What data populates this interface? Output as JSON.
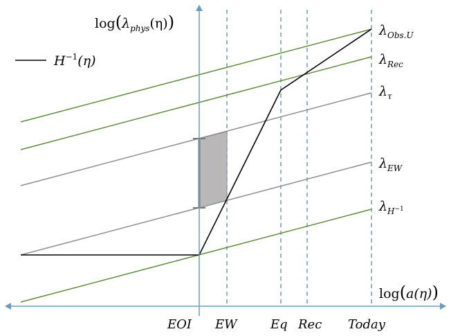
{
  "axes": {
    "y_label_prefix": "log",
    "y_label_arg": "λ",
    "y_label_sub": "phys",
    "y_label_tail": "(η)",
    "x_label_prefix": "log",
    "x_label_arg": "a(η)"
  },
  "legend": {
    "label_main": "H",
    "label_sup": "−1",
    "label_tail": "(η)"
  },
  "ticks": {
    "eoi": "EOI",
    "ew": "EW",
    "eq": "Eq",
    "rec": "Rec",
    "today": "Today"
  },
  "line_labels": {
    "obs": {
      "base": "λ",
      "sub": "Obs.U"
    },
    "rec": {
      "base": "λ",
      "sub": "Rec"
    },
    "tau": {
      "base": "λ",
      "sub": "τ"
    },
    "ew": {
      "base": "λ",
      "sub": "EW"
    },
    "hinv": {
      "base": "λ",
      "sub": "H",
      "subsup": "−1"
    }
  },
  "colors": {
    "axis": "#6b9bc3",
    "green": "#5f8a3a",
    "gray": "#8c8c8c",
    "black": "#000000",
    "shade": "#b9b7b8"
  }
}
